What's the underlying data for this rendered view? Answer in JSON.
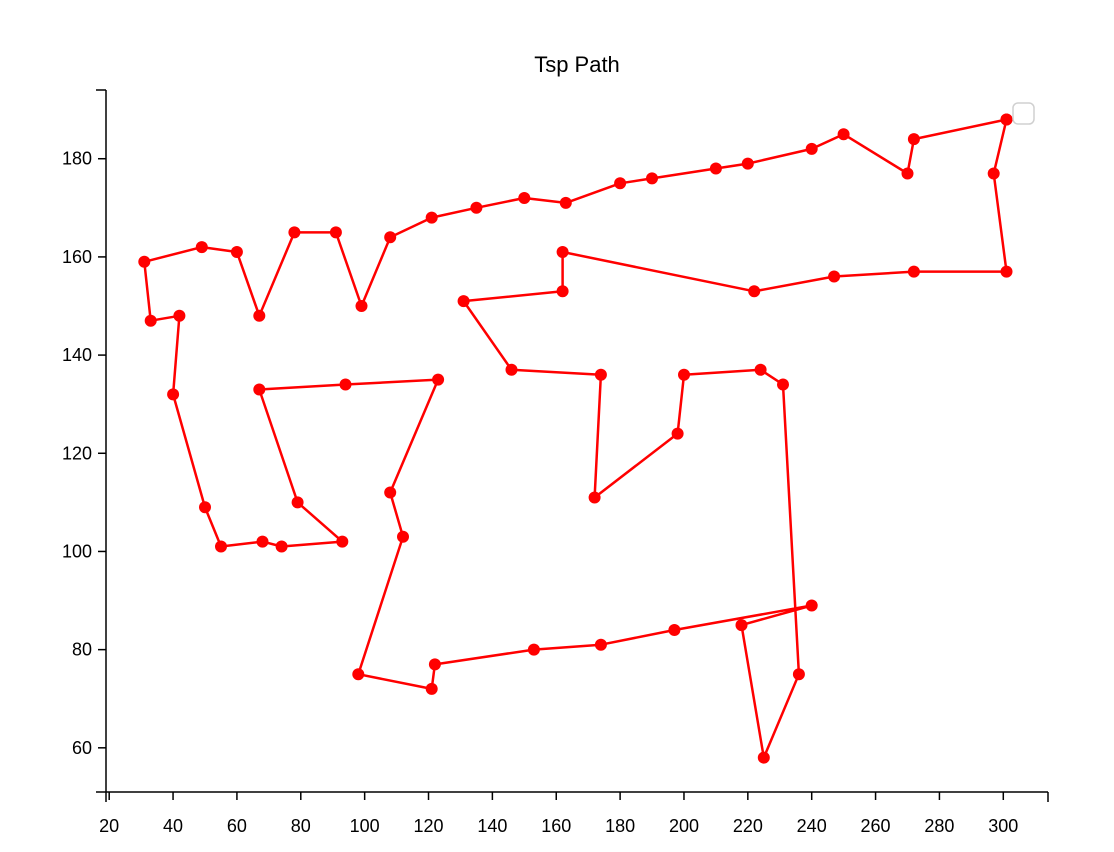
{
  "chart_data": {
    "type": "line",
    "title": "Tsp Path",
    "xlabel": "",
    "ylabel": "",
    "xlim": [
      19,
      314
    ],
    "ylim": [
      51,
      194
    ],
    "x_ticks": [
      20,
      40,
      60,
      80,
      100,
      120,
      140,
      160,
      180,
      200,
      220,
      240,
      260,
      280,
      300
    ],
    "y_ticks": [
      60,
      80,
      100,
      120,
      140,
      160,
      180
    ],
    "grid": false,
    "legend": "top-right",
    "series": [
      {
        "color": "#ff0000",
        "marker": "circle",
        "points": [
          [
            301,
            188
          ],
          [
            297,
            177
          ],
          [
            301,
            157
          ],
          [
            272,
            157
          ],
          [
            247,
            156
          ],
          [
            222,
            153
          ],
          [
            162,
            161
          ],
          [
            162,
            153
          ],
          [
            131,
            151
          ],
          [
            146,
            137
          ],
          [
            174,
            136
          ],
          [
            172,
            111
          ],
          [
            198,
            124
          ],
          [
            200,
            136
          ],
          [
            224,
            137
          ],
          [
            231,
            134
          ],
          [
            236,
            75
          ],
          [
            225,
            58
          ],
          [
            218,
            85
          ],
          [
            240,
            89
          ],
          [
            197,
            84
          ],
          [
            174,
            81
          ],
          [
            153,
            80
          ],
          [
            122,
            77
          ],
          [
            121,
            72
          ],
          [
            98,
            75
          ],
          [
            112,
            103
          ],
          [
            108,
            112
          ],
          [
            123,
            135
          ],
          [
            94,
            134
          ],
          [
            67,
            133
          ],
          [
            79,
            110
          ],
          [
            93,
            102
          ],
          [
            74,
            101
          ],
          [
            68,
            102
          ],
          [
            55,
            101
          ],
          [
            50,
            109
          ],
          [
            40,
            132
          ],
          [
            42,
            148
          ],
          [
            33,
            147
          ],
          [
            31,
            159
          ],
          [
            49,
            162
          ],
          [
            60,
            161
          ],
          [
            67,
            148
          ],
          [
            78,
            165
          ],
          [
            91,
            165
          ],
          [
            99,
            150
          ],
          [
            108,
            164
          ],
          [
            121,
            168
          ],
          [
            135,
            170
          ],
          [
            150,
            172
          ],
          [
            163,
            171
          ],
          [
            180,
            175
          ],
          [
            190,
            176
          ],
          [
            210,
            178
          ],
          [
            220,
            179
          ],
          [
            240,
            182
          ],
          [
            250,
            185
          ],
          [
            270,
            177
          ],
          [
            272,
            184
          ],
          [
            301,
            188
          ]
        ]
      }
    ]
  }
}
